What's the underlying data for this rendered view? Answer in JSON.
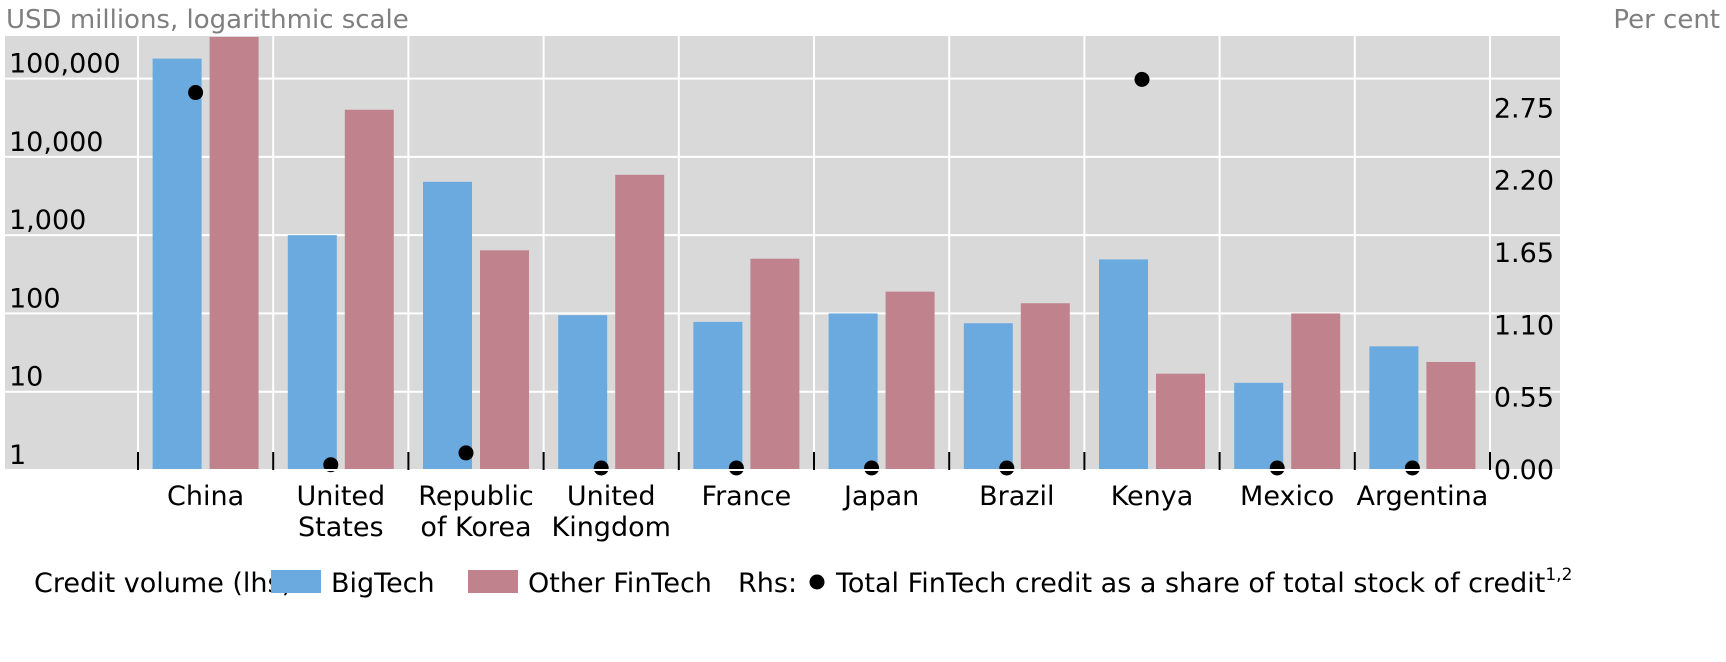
{
  "chart_data": {
    "type": "bar",
    "left_axis_title": "USD millions, logarithmic scale",
    "right_axis_title": "Per cent",
    "categories": [
      "China",
      "United States",
      "Republic of Korea",
      "United Kingdom",
      "France",
      "Japan",
      "Brazil",
      "Kenya",
      "Mexico",
      "Argentina"
    ],
    "category_lines": [
      [
        "China"
      ],
      [
        "United",
        "States"
      ],
      [
        "Republic",
        "of Korea"
      ],
      [
        "United",
        "Kingdom"
      ],
      [
        "France"
      ],
      [
        "Japan"
      ],
      [
        "Brazil"
      ],
      [
        "Kenya"
      ],
      [
        "Mexico"
      ],
      [
        "Argentina"
      ]
    ],
    "y_left": {
      "scale": "log",
      "min": 1,
      "max": 350000,
      "ticks": [
        1,
        10,
        100,
        1000,
        10000,
        100000
      ],
      "tick_labels": [
        "1",
        "10",
        "100",
        "1,000",
        "10,000",
        "100,000"
      ]
    },
    "y_right": {
      "scale": "linear",
      "min": 0,
      "max": 3.3,
      "ticks": [
        0,
        0.55,
        1.1,
        1.65,
        2.2,
        2.75
      ],
      "tick_labels": [
        "0.00",
        "0.55",
        "1.10",
        "1.65",
        "2.20",
        "2.75"
      ]
    },
    "series": [
      {
        "name": "BigTech",
        "axis": "left",
        "color": "#6aaade",
        "values": [
          180000,
          1000,
          4800,
          95,
          78,
          100,
          75,
          490,
          13,
          38
        ]
      },
      {
        "name": "Other FinTech",
        "axis": "left",
        "color": "#c0838e",
        "values": [
          340000,
          40000,
          640,
          5900,
          500,
          190,
          135,
          17,
          100,
          24
        ]
      },
      {
        "name": "Total FinTech credit as a share of total stock of credit",
        "superscript": "1,2",
        "axis": "right",
        "type": "scatter",
        "color": "#000000",
        "values": [
          2.87,
          0.04,
          0.13,
          0.0,
          -0.1,
          -0.1,
          -0.1,
          2.97,
          -0.09,
          -0.05
        ]
      }
    ],
    "legend": {
      "position": "bottom",
      "prefix_lhs": "Credit volume (lhs):",
      "prefix_rhs": "Rhs:"
    },
    "grid": true,
    "colors": {
      "plot_bg": "#d9d9d9",
      "grid": "#ffffff"
    }
  }
}
